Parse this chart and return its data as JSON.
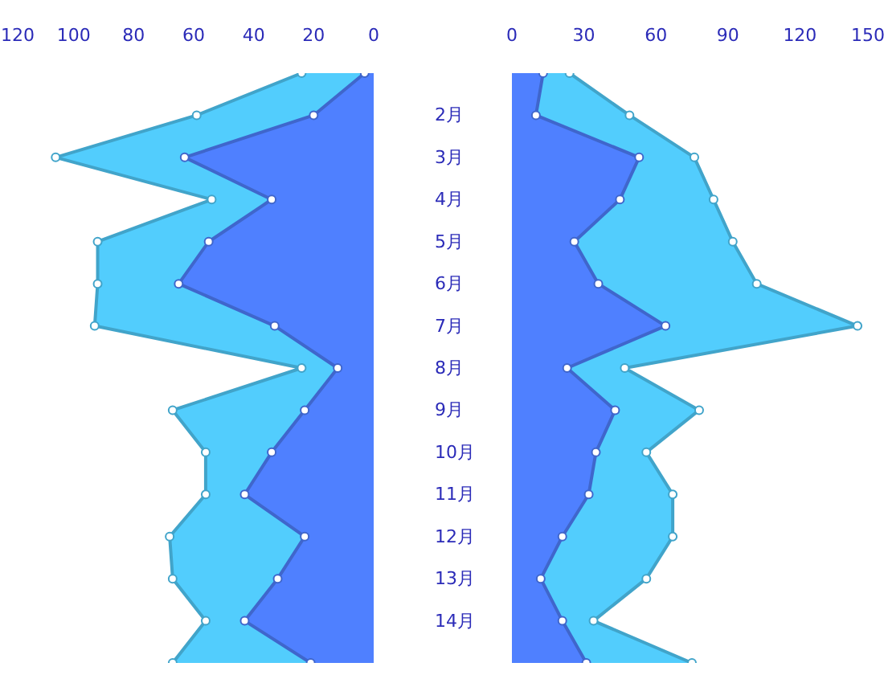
{
  "chart_data": [
    {
      "type": "area",
      "orientation": "horizontal",
      "categories": [
        null,
        "2月",
        "3月",
        "4月",
        "5月",
        "6月",
        "7月",
        "8月",
        "9月",
        "10月",
        "11月",
        "12月",
        "13月",
        "14月",
        null
      ],
      "xlim": [
        120,
        0
      ],
      "xticks": [
        120,
        100,
        80,
        60,
        40,
        20,
        0
      ],
      "marker": "circle",
      "grid": false,
      "series": [
        {
          "color": "#52cdfd",
          "values": [
            24,
            59,
            106,
            54,
            92,
            92,
            93,
            24,
            67,
            56,
            56,
            68,
            67,
            56,
            67
          ]
        },
        {
          "color": "#4f80ff",
          "values": [
            3,
            20,
            63,
            34,
            55,
            65,
            33,
            12,
            23,
            34,
            43,
            23,
            32,
            43,
            21
          ]
        }
      ]
    },
    {
      "type": "area",
      "orientation": "horizontal",
      "xlim": [
        0,
        150
      ],
      "xticks": [
        0,
        30,
        60,
        90,
        120,
        150
      ],
      "tick_labels": "x",
      "marker": "circle",
      "grid": false,
      "series": [
        {
          "color": "#52cdfd",
          "values": [
            24,
            49,
            76,
            84,
            92,
            102,
            144,
            47,
            78,
            56,
            67,
            67,
            56,
            34,
            75
          ]
        },
        {
          "color": "#4f80ff",
          "values": [
            13,
            10,
            53,
            45,
            26,
            36,
            64,
            23,
            43,
            35,
            32,
            21,
            12,
            21,
            31
          ]
        }
      ]
    }
  ]
}
